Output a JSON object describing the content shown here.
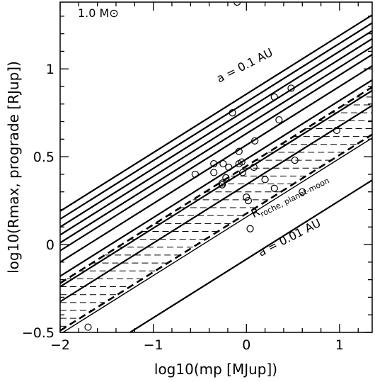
{
  "chart_data": {
    "type": "scatter",
    "title": "",
    "panel_label": "1.0 M⊙",
    "xlabel": "log10(mp [MJup])",
    "ylabel": "log10(Rmax, prograde [RJup])",
    "xlim": [
      -2.0,
      1.35
    ],
    "ylim": [
      -0.5,
      1.38
    ],
    "x_ticks": [
      {
        "value": -2,
        "label": "−2"
      },
      {
        "value": -1,
        "label": "−1"
      },
      {
        "value": 0,
        "label": "0"
      },
      {
        "value": 1,
        "label": "1"
      }
    ],
    "y_ticks": [
      {
        "value": -0.5,
        "label": "−0.5"
      },
      {
        "value": 0,
        "label": "0"
      },
      {
        "value": 0.5,
        "label": "0.5"
      },
      {
        "value": 1,
        "label": "1"
      }
    ],
    "slope": 0.3333,
    "solid_lines_intercept_at_x_min": [
      0.19,
      0.145,
      0.1,
      0.055,
      0.01,
      -0.035,
      -0.1,
      -0.18,
      -0.24,
      -0.325
    ],
    "outer_line_intercept_at_x_min": -0.75,
    "dashed_bound_upper_intercept_at_x_min": -0.22,
    "dashed_bound_lower_intercept_at_x_min": -0.49,
    "thin_roche_line_intercept_at_x_min": -0.51,
    "hatched_band": {
      "upper_intercept_at_x_min": -0.22,
      "lower_intercept_at_x_min": -0.49
    },
    "annotations": [
      {
        "text": "a = 0.1 AU",
        "x": 0.0,
        "y": 1.0,
        "rotate_deg": -27
      },
      {
        "text": "a = 0.01 AU",
        "x": 0.48,
        "y": 0.02,
        "rotate_deg": -27
      },
      {
        "text": "Rroche, planet-moon",
        "main": "R",
        "sub": "roche, planet-moon",
        "x": 0.48,
        "y": 0.26,
        "rotate_deg": -27
      }
    ],
    "points": [
      {
        "x": -0.1,
        "y": 1.38
      },
      {
        "x": -0.15,
        "y": 0.75
      },
      {
        "x": 0.3,
        "y": 0.84
      },
      {
        "x": 0.48,
        "y": 0.89
      },
      {
        "x": 0.35,
        "y": 0.71
      },
      {
        "x": 0.09,
        "y": 0.59
      },
      {
        "x": 0.97,
        "y": 0.65
      },
      {
        "x": -0.08,
        "y": 0.53
      },
      {
        "x": -0.08,
        "y": 0.46
      },
      {
        "x": -0.05,
        "y": 0.47
      },
      {
        "x": -0.55,
        "y": 0.4
      },
      {
        "x": -0.35,
        "y": 0.46
      },
      {
        "x": -0.35,
        "y": 0.41
      },
      {
        "x": -0.25,
        "y": 0.46
      },
      {
        "x": -0.19,
        "y": 0.44
      },
      {
        "x": 0.08,
        "y": 0.44
      },
      {
        "x": -0.04,
        "y": 0.41
      },
      {
        "x": -0.22,
        "y": 0.38
      },
      {
        "x": -0.26,
        "y": 0.35
      },
      {
        "x": -0.26,
        "y": 0.34
      },
      {
        "x": 0.2,
        "y": 0.37
      },
      {
        "x": 0.3,
        "y": 0.32
      },
      {
        "x": 0.52,
        "y": 0.48
      },
      {
        "x": 0.6,
        "y": 0.3
      },
      {
        "x": 0.0,
        "y": 0.27
      },
      {
        "x": 0.02,
        "y": 0.25
      },
      {
        "x": 0.04,
        "y": 0.09
      },
      {
        "x": -1.7,
        "y": -0.47
      }
    ]
  }
}
